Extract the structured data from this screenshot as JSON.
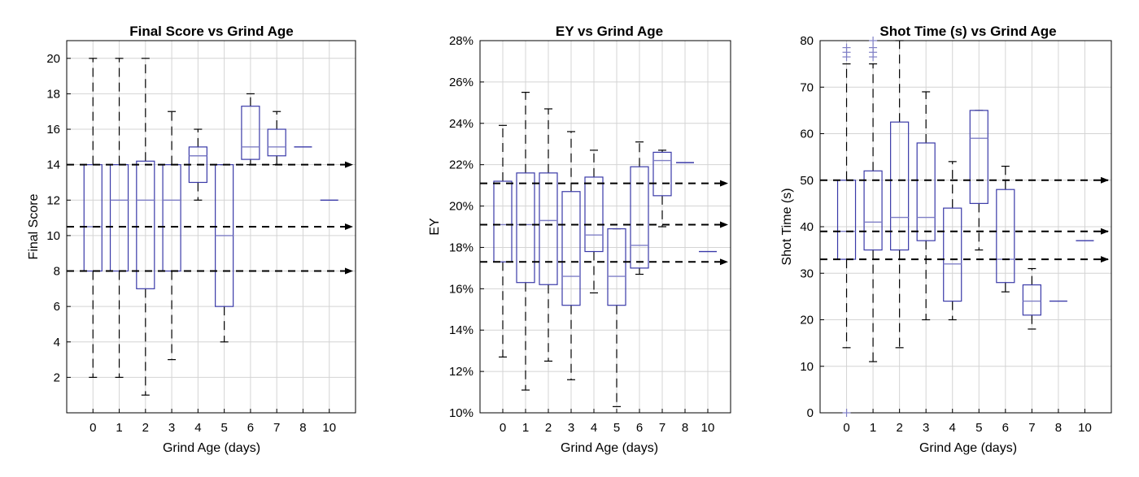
{
  "colors": {
    "box": "#3a3aa8",
    "median": "#7f7fc6",
    "whisker": "#000000",
    "grid": "#d4d4d4",
    "arrow": "#000000"
  },
  "chart_data": [
    {
      "type": "box",
      "title": "Final Score  vs Grind Age",
      "xlabel": "Grind Age (days)",
      "ylabel": "Final Score",
      "categories": [
        "0",
        "1",
        "2",
        "3",
        "4",
        "5",
        "6",
        "7",
        "8",
        "10"
      ],
      "ylim": [
        0,
        21
      ],
      "yticks": [
        2,
        4,
        6,
        8,
        10,
        12,
        14,
        16,
        18,
        20
      ],
      "ytick_labels": [
        "2",
        "4",
        "6",
        "8",
        "10",
        "12",
        "14",
        "16",
        "18",
        "20"
      ],
      "grid": true,
      "boxes": [
        {
          "min": 2,
          "q1": 8,
          "median": 10.5,
          "q3": 14,
          "max": 20
        },
        {
          "min": 2,
          "q1": 8,
          "median": 12,
          "q3": 14,
          "max": 20
        },
        {
          "min": 1,
          "q1": 7,
          "median": 12,
          "q3": 14.2,
          "max": 20
        },
        {
          "min": 3,
          "q1": 8,
          "median": 12,
          "q3": 14,
          "max": 17
        },
        {
          "min": 12,
          "q1": 13,
          "median": 14.5,
          "q3": 15,
          "max": 16
        },
        {
          "min": 4,
          "q1": 6,
          "median": 10,
          "q3": 14,
          "max": 14
        },
        {
          "min": 14,
          "q1": 14.3,
          "median": 15,
          "q3": 17.3,
          "max": 18
        },
        {
          "min": 14,
          "q1": 14.5,
          "median": 15,
          "q3": 16,
          "max": 17
        },
        {
          "min": 15,
          "q1": 15,
          "median": 15,
          "q3": 15,
          "max": 15
        },
        {
          "min": 12,
          "q1": 12,
          "median": 12,
          "q3": 12,
          "max": 12
        }
      ],
      "outliers": [],
      "reference_lines": [
        14,
        10.5,
        8
      ]
    },
    {
      "type": "box",
      "title": "EY  vs Grind Age",
      "xlabel": "Grind Age (days)",
      "ylabel": "EY",
      "categories": [
        "0",
        "1",
        "2",
        "3",
        "4",
        "5",
        "6",
        "7",
        "8",
        "10"
      ],
      "ylim": [
        10,
        28
      ],
      "yticks": [
        10,
        12,
        14,
        16,
        18,
        20,
        22,
        24,
        26,
        28
      ],
      "ytick_labels": [
        "10%",
        "12%",
        "14%",
        "16%",
        "18%",
        "20%",
        "22%",
        "24%",
        "26%",
        "28%"
      ],
      "grid": true,
      "boxes": [
        {
          "min": 12.7,
          "q1": 17.3,
          "median": 19.1,
          "q3": 21.2,
          "max": 23.9
        },
        {
          "min": 11.1,
          "q1": 16.3,
          "median": 19.1,
          "q3": 21.6,
          "max": 25.5
        },
        {
          "min": 12.5,
          "q1": 16.2,
          "median": 19.3,
          "q3": 21.6,
          "max": 24.7
        },
        {
          "min": 11.6,
          "q1": 15.2,
          "median": 16.6,
          "q3": 20.7,
          "max": 23.6
        },
        {
          "min": 15.8,
          "q1": 17.8,
          "median": 18.6,
          "q3": 21.4,
          "max": 22.7
        },
        {
          "min": 10.3,
          "q1": 15.2,
          "median": 16.6,
          "q3": 18.9,
          "max": 18.9
        },
        {
          "min": 16.7,
          "q1": 17.0,
          "median": 18.1,
          "q3": 21.9,
          "max": 23.1
        },
        {
          "min": 19.0,
          "q1": 20.5,
          "median": 22.2,
          "q3": 22.6,
          "max": 22.7
        },
        {
          "min": 22.1,
          "q1": 22.1,
          "median": 22.1,
          "q3": 22.1,
          "max": 22.1
        },
        {
          "min": 17.8,
          "q1": 17.8,
          "median": 17.8,
          "q3": 17.8,
          "max": 17.8
        }
      ],
      "outliers": [],
      "reference_lines": [
        21.1,
        19.1,
        17.3
      ]
    },
    {
      "type": "box",
      "title": "Shot Time (s)  vs Grind Age",
      "xlabel": "Grind Age (days)",
      "ylabel": "Shot Time (s)",
      "categories": [
        "0",
        "1",
        "2",
        "3",
        "4",
        "5",
        "6",
        "7",
        "8",
        "10"
      ],
      "ylim": [
        0,
        80
      ],
      "yticks": [
        0,
        10,
        20,
        30,
        40,
        50,
        60,
        70,
        80
      ],
      "ytick_labels": [
        "0",
        "10",
        "20",
        "30",
        "40",
        "50",
        "60",
        "70",
        "80"
      ],
      "grid": true,
      "boxes": [
        {
          "min": 14,
          "q1": 33,
          "median": 39,
          "q3": 50,
          "max": 75
        },
        {
          "min": 11,
          "q1": 35,
          "median": 41,
          "q3": 52,
          "max": 75
        },
        {
          "min": 14,
          "q1": 35,
          "median": 42,
          "q3": 62.5,
          "max": 80
        },
        {
          "min": 20,
          "q1": 37,
          "median": 42,
          "q3": 58,
          "max": 69
        },
        {
          "min": 20,
          "q1": 24,
          "median": 32,
          "q3": 44,
          "max": 54
        },
        {
          "min": 35,
          "q1": 45,
          "median": 59,
          "q3": 65,
          "max": 65
        },
        {
          "min": 26,
          "q1": 28,
          "median": 33,
          "q3": 48,
          "max": 53
        },
        {
          "min": 18,
          "q1": 21,
          "median": 24,
          "q3": 27.5,
          "max": 31
        },
        {
          "min": 24,
          "q1": 24,
          "median": 24,
          "q3": 24,
          "max": 24
        },
        {
          "min": 37,
          "q1": 37,
          "median": 37,
          "q3": 37,
          "max": 37
        }
      ],
      "outliers": [
        {
          "category": 0,
          "values": [
            76.5,
            77.5,
            78.5,
            0
          ]
        },
        {
          "category": 1,
          "values": [
            76.5,
            77.5,
            78.5,
            80
          ]
        }
      ],
      "reference_lines": [
        50,
        39,
        33
      ]
    }
  ]
}
